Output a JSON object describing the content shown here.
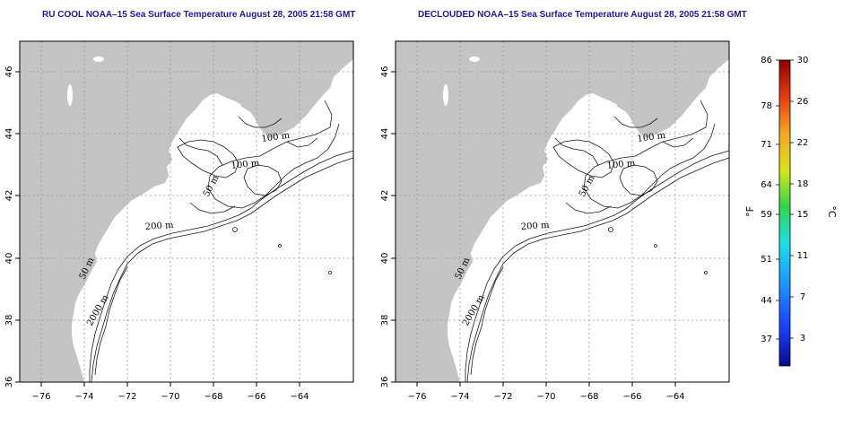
{
  "maps": [
    {
      "title": "RU COOL NOAA–15 Sea Surface Temperature August 28, 2005 21:58 GMT",
      "contour_labels": [
        "100 m",
        "100 m",
        "50 m",
        "200 m",
        "50 m",
        "2000 m"
      ]
    },
    {
      "title": "DECLOUDED NOAA–15 Sea Surface Temperature August 28, 2005 21:58 GMT",
      "contour_labels": [
        "100 m",
        "100 m",
        "50 m",
        "200 m",
        "50 m",
        "2000 m"
      ]
    }
  ],
  "axes": {
    "x_ticks": [
      "−76",
      "−74",
      "−72",
      "−70",
      "−68",
      "−66",
      "−64"
    ],
    "y_ticks": [
      "36",
      "38",
      "40",
      "42",
      "44",
      "46"
    ],
    "grid": "dotted"
  },
  "colorbar": {
    "fahrenheit_unit": "°F",
    "celsius_unit": "°C",
    "fahrenheit_ticks": [
      "86",
      "78",
      "71",
      "64",
      "59",
      "51",
      "44",
      "37"
    ],
    "celsius_ticks": [
      "30",
      "26",
      "22",
      "18",
      "15",
      "11",
      "7",
      "3"
    ],
    "colors": [
      "#0a0a8c",
      "#1a3cff",
      "#1e9bff",
      "#19e0e6",
      "#2ed84a",
      "#d8e619",
      "#f5a623",
      "#e63a14",
      "#8b0000"
    ]
  },
  "colors": {
    "land": "#c4c4c4",
    "title": "#1a1a9c",
    "ocean": "#ffffff"
  }
}
